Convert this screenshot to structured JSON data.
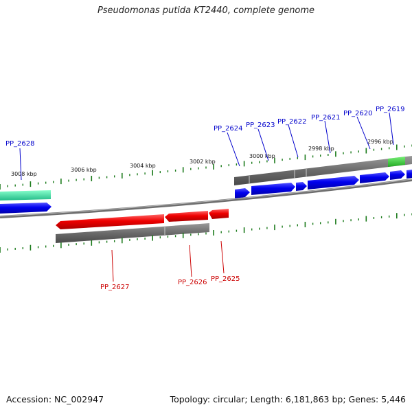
{
  "title": "Pseudomonas putida KT2440, complete genome",
  "footer": {
    "accession": "Accession: NC_002947",
    "summary": "Topology: circular; Length: 6,181,863 bp; Genes: 5,446"
  },
  "colors": {
    "forward_gene": "#0000ee",
    "reverse_gene": "#ee0000",
    "rna_gene": "#33cc33",
    "highlight_gene": "#33ddaa",
    "backbone": "#777777",
    "ticks": "#1a7a1a",
    "forward_label": "#0000cc",
    "reverse_label": "#cc0000"
  },
  "kbp_ticks": [
    "3008 kbp",
    "3006 kbp",
    "3004 kbp",
    "3002 kbp",
    "3000 kbp",
    "2998 kbp",
    "2996 kbp"
  ],
  "forward_genes": [
    "PP_2628",
    "PP_2624",
    "PP_2623",
    "PP_2622",
    "PP_2621",
    "PP_2620",
    "PP_2619"
  ],
  "reverse_genes": [
    "PP_2627",
    "PP_2626",
    "PP_2625"
  ]
}
